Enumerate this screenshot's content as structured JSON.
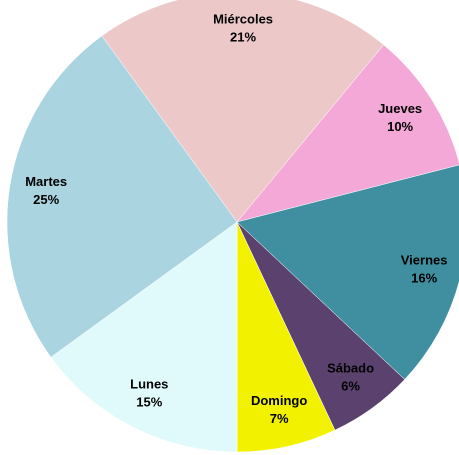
{
  "chart_data": {
    "type": "pie",
    "categories": [
      "Miércoles",
      "Jueves",
      "Viernes",
      "Sábado",
      "Domingo",
      "Lunes",
      "Martes"
    ],
    "values": [
      21,
      10,
      16,
      6,
      7,
      15,
      25
    ],
    "value_labels": [
      "21%",
      "10%",
      "16%",
      "6%",
      "7%",
      "15%",
      "25%"
    ],
    "colors": [
      "#ecc8c8",
      "#f4a8d8",
      "#3f8fa1",
      "#5b416e",
      "#f2f200",
      "#e0fafc",
      "#a9d4e0"
    ]
  }
}
